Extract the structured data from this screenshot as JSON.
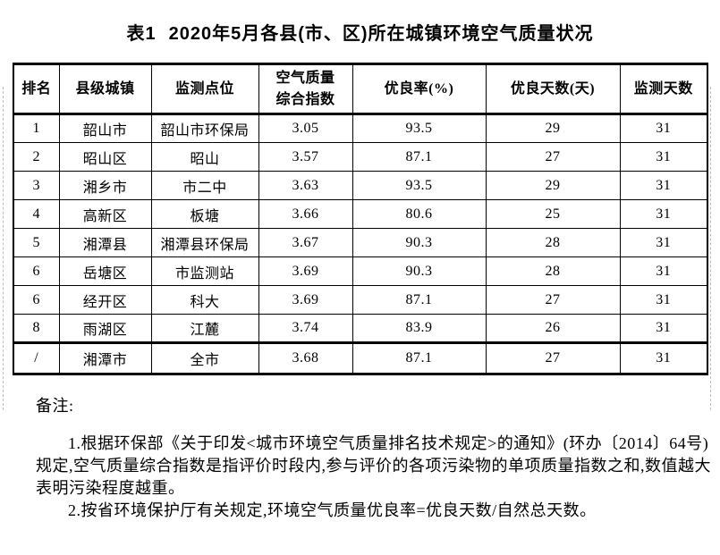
{
  "title": {
    "label": "表1",
    "text": "2020年5月各县(市、区)所在城镇环境空气质量状况"
  },
  "table": {
    "columns": [
      "排名",
      "县级城镇",
      "监测点位",
      "空气质量\n综合指数",
      "优良率(%)",
      "优良天数(天)",
      "监测天数"
    ],
    "rows": [
      [
        "1",
        "韶山市",
        "韶山市环保局",
        "3.05",
        "93.5",
        "29",
        "31"
      ],
      [
        "2",
        "昭山区",
        "昭山",
        "3.57",
        "87.1",
        "27",
        "31"
      ],
      [
        "3",
        "湘乡市",
        "市二中",
        "3.63",
        "93.5",
        "29",
        "31"
      ],
      [
        "4",
        "高新区",
        "板塘",
        "3.66",
        "80.6",
        "25",
        "31"
      ],
      [
        "5",
        "湘潭县",
        "湘潭县环保局",
        "3.67",
        "90.3",
        "28",
        "31"
      ],
      [
        "6",
        "岳塘区",
        "市监测站",
        "3.69",
        "90.3",
        "28",
        "31"
      ],
      [
        "6",
        "经开区",
        "科大",
        "3.69",
        "87.1",
        "27",
        "31"
      ],
      [
        "8",
        "雨湖区",
        "江麓",
        "3.74",
        "83.9",
        "26",
        "31"
      ],
      [
        "/",
        "湘潭市",
        "全市",
        "3.68",
        "87.1",
        "27",
        "31"
      ]
    ]
  },
  "notes": {
    "label": "备注:",
    "items": [
      "1.根据环保部《关于印发<城市环境空气质量排名技术规定>的通知》(环办〔2014〕64号)规定,空气质量综合指数是指评价时段内,参与评价的各项污染物的单项质量指数之和,数值越大表明污染程度越重。",
      "2.按省环境保护厅有关规定,环境空气质量优良率=优良天数/自然总天数。"
    ]
  },
  "colors": {
    "background": "#ffffff",
    "text": "#000000",
    "table_border": "#000000",
    "boundary_dash": "#bcbcbc"
  }
}
